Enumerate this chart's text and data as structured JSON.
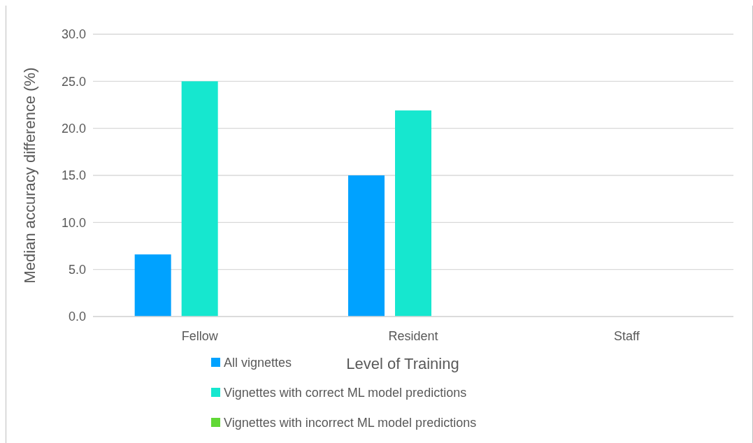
{
  "chart_data": {
    "type": "bar",
    "xlabel": "Level of Training",
    "ylabel": "Median accuracy difference (%)",
    "categories": [
      "Fellow",
      "Resident",
      "Staff"
    ],
    "series": [
      {
        "name": "All vignettes",
        "color": "#00a2ff",
        "values": [
          6.6,
          15.0,
          null
        ]
      },
      {
        "name": "Vignettes with correct ML model predictions",
        "color": "#16e7cf",
        "values": [
          25.0,
          21.9,
          null
        ]
      },
      {
        "name": "Vignettes with incorrect ML model predictions",
        "color": "#61d836",
        "values": [
          null,
          null,
          null
        ]
      }
    ],
    "ylim": [
      0,
      30
    ],
    "yticks": [
      {
        "value": 0,
        "label": "0.0"
      },
      {
        "value": 5,
        "label": "5.0"
      },
      {
        "value": 10,
        "label": "10.0"
      },
      {
        "value": 15,
        "label": "15.0"
      },
      {
        "value": 20,
        "label": "20.0"
      },
      {
        "value": 25,
        "label": "25.0"
      },
      {
        "value": 30,
        "label": "30.0"
      }
    ],
    "grid": "y",
    "legend": "bottom"
  }
}
